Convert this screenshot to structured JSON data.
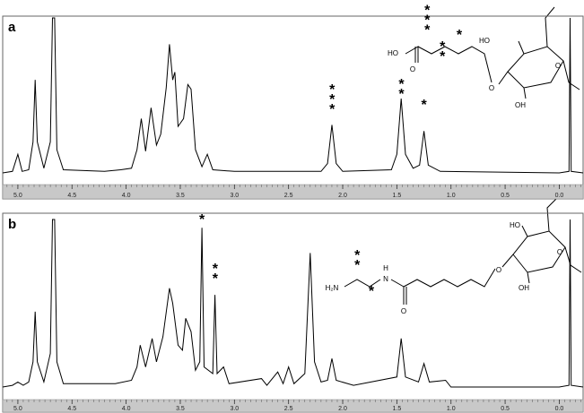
{
  "chart_data": [
    {
      "type": "line",
      "panel_label": "a",
      "color": "#000000",
      "x": [
        5.14,
        5.05,
        5.0,
        4.96,
        4.9,
        4.86,
        4.84,
        4.82,
        4.76,
        4.7,
        4.68,
        4.66,
        4.64,
        4.58,
        4.2,
        4.05,
        3.95,
        3.9,
        3.86,
        3.82,
        3.77,
        3.72,
        3.68,
        3.63,
        3.6,
        3.57,
        3.55,
        3.52,
        3.47,
        3.43,
        3.4,
        3.36,
        3.3,
        3.25,
        3.2,
        3.0,
        2.2,
        2.14,
        2.1,
        2.06,
        2.0,
        1.55,
        1.5,
        1.46,
        1.42,
        1.35,
        1.29,
        1.25,
        1.21,
        1.1,
        0.0,
        -0.09,
        -0.1,
        -0.11,
        -0.22
      ],
      "values": [
        0,
        1,
        12,
        1,
        2,
        20,
        60,
        20,
        3,
        20,
        100,
        100,
        15,
        2,
        1,
        2,
        3,
        15,
        35,
        14,
        42,
        18,
        25,
        55,
        83,
        60,
        65,
        30,
        35,
        57,
        54,
        15,
        4,
        12,
        2,
        1,
        1,
        6,
        31,
        6,
        1,
        2,
        12,
        48,
        12,
        3,
        5,
        27,
        5,
        1,
        0,
        1,
        100,
        1,
        0
      ],
      "xlim": [
        5.14,
        -0.22
      ],
      "ylim": [
        0,
        100
      ],
      "xticks": [
        {
          "value": 5,
          "label": "5.0"
        },
        4.5,
        {
          "value": 4,
          "label": "4.0"
        },
        3.5,
        {
          "value": 3,
          "label": "3.0"
        },
        2.5,
        {
          "value": 2,
          "label": "2.0"
        },
        1.5,
        {
          "value": 1,
          "label": "1.0"
        },
        0.5,
        {
          "value": 0,
          "label": "0.0"
        }
      ],
      "annotations": [
        "***",
        "**",
        "*"
      ],
      "structure_labels": [
        "HO",
        "O",
        "O",
        "O",
        "HO",
        "OH",
        "***",
        "*",
        "**"
      ]
    },
    {
      "type": "line",
      "panel_label": "b",
      "color": "#000000",
      "x": [
        5.14,
        5.05,
        5.0,
        4.95,
        4.9,
        4.86,
        4.84,
        4.82,
        4.76,
        4.7,
        4.68,
        4.66,
        4.64,
        4.58,
        4.1,
        3.95,
        3.9,
        3.87,
        3.82,
        3.76,
        3.72,
        3.66,
        3.6,
        3.57,
        3.52,
        3.48,
        3.45,
        3.4,
        3.36,
        3.32,
        3.3,
        3.28,
        3.2,
        3.18,
        3.16,
        3.1,
        3.05,
        2.75,
        2.7,
        2.6,
        2.55,
        2.5,
        2.45,
        2.35,
        2.3,
        2.26,
        2.2,
        2.14,
        2.1,
        2.06,
        1.9,
        1.5,
        1.46,
        1.42,
        1.3,
        1.25,
        1.2,
        1.05,
        1.0,
        0.0,
        -0.09,
        -0.1,
        -0.11,
        -0.22
      ],
      "values": [
        0,
        1,
        3,
        1,
        3,
        15,
        45,
        15,
        3,
        20,
        100,
        100,
        15,
        2,
        2,
        4,
        12,
        25,
        12,
        29,
        15,
        30,
        59,
        50,
        25,
        22,
        41,
        33,
        10,
        15,
        95,
        12,
        8,
        55,
        8,
        12,
        2,
        5,
        1,
        9,
        2,
        12,
        2,
        8,
        80,
        15,
        3,
        4,
        17,
        4,
        1,
        6,
        29,
        6,
        3,
        14,
        3,
        4,
        0,
        0,
        1,
        100,
        1,
        0
      ],
      "xlim": [
        5.14,
        -0.22
      ],
      "ylim": [
        0,
        100
      ],
      "xticks": [
        {
          "value": 5,
          "label": "5.0"
        },
        4.5,
        {
          "value": 4,
          "label": "4.0"
        },
        3.5,
        {
          "value": 3,
          "label": "3.0"
        },
        2.5,
        {
          "value": 2,
          "label": "2.0"
        },
        1.5,
        {
          "value": 1,
          "label": "1.0"
        },
        0.5,
        {
          "value": 0,
          "label": "0.0"
        }
      ],
      "annotations": [
        "*",
        "**"
      ],
      "structure_labels": [
        "H₂N",
        "N",
        "H",
        "O",
        "O",
        "O",
        "HO",
        "OH",
        "**",
        "*"
      ]
    }
  ]
}
